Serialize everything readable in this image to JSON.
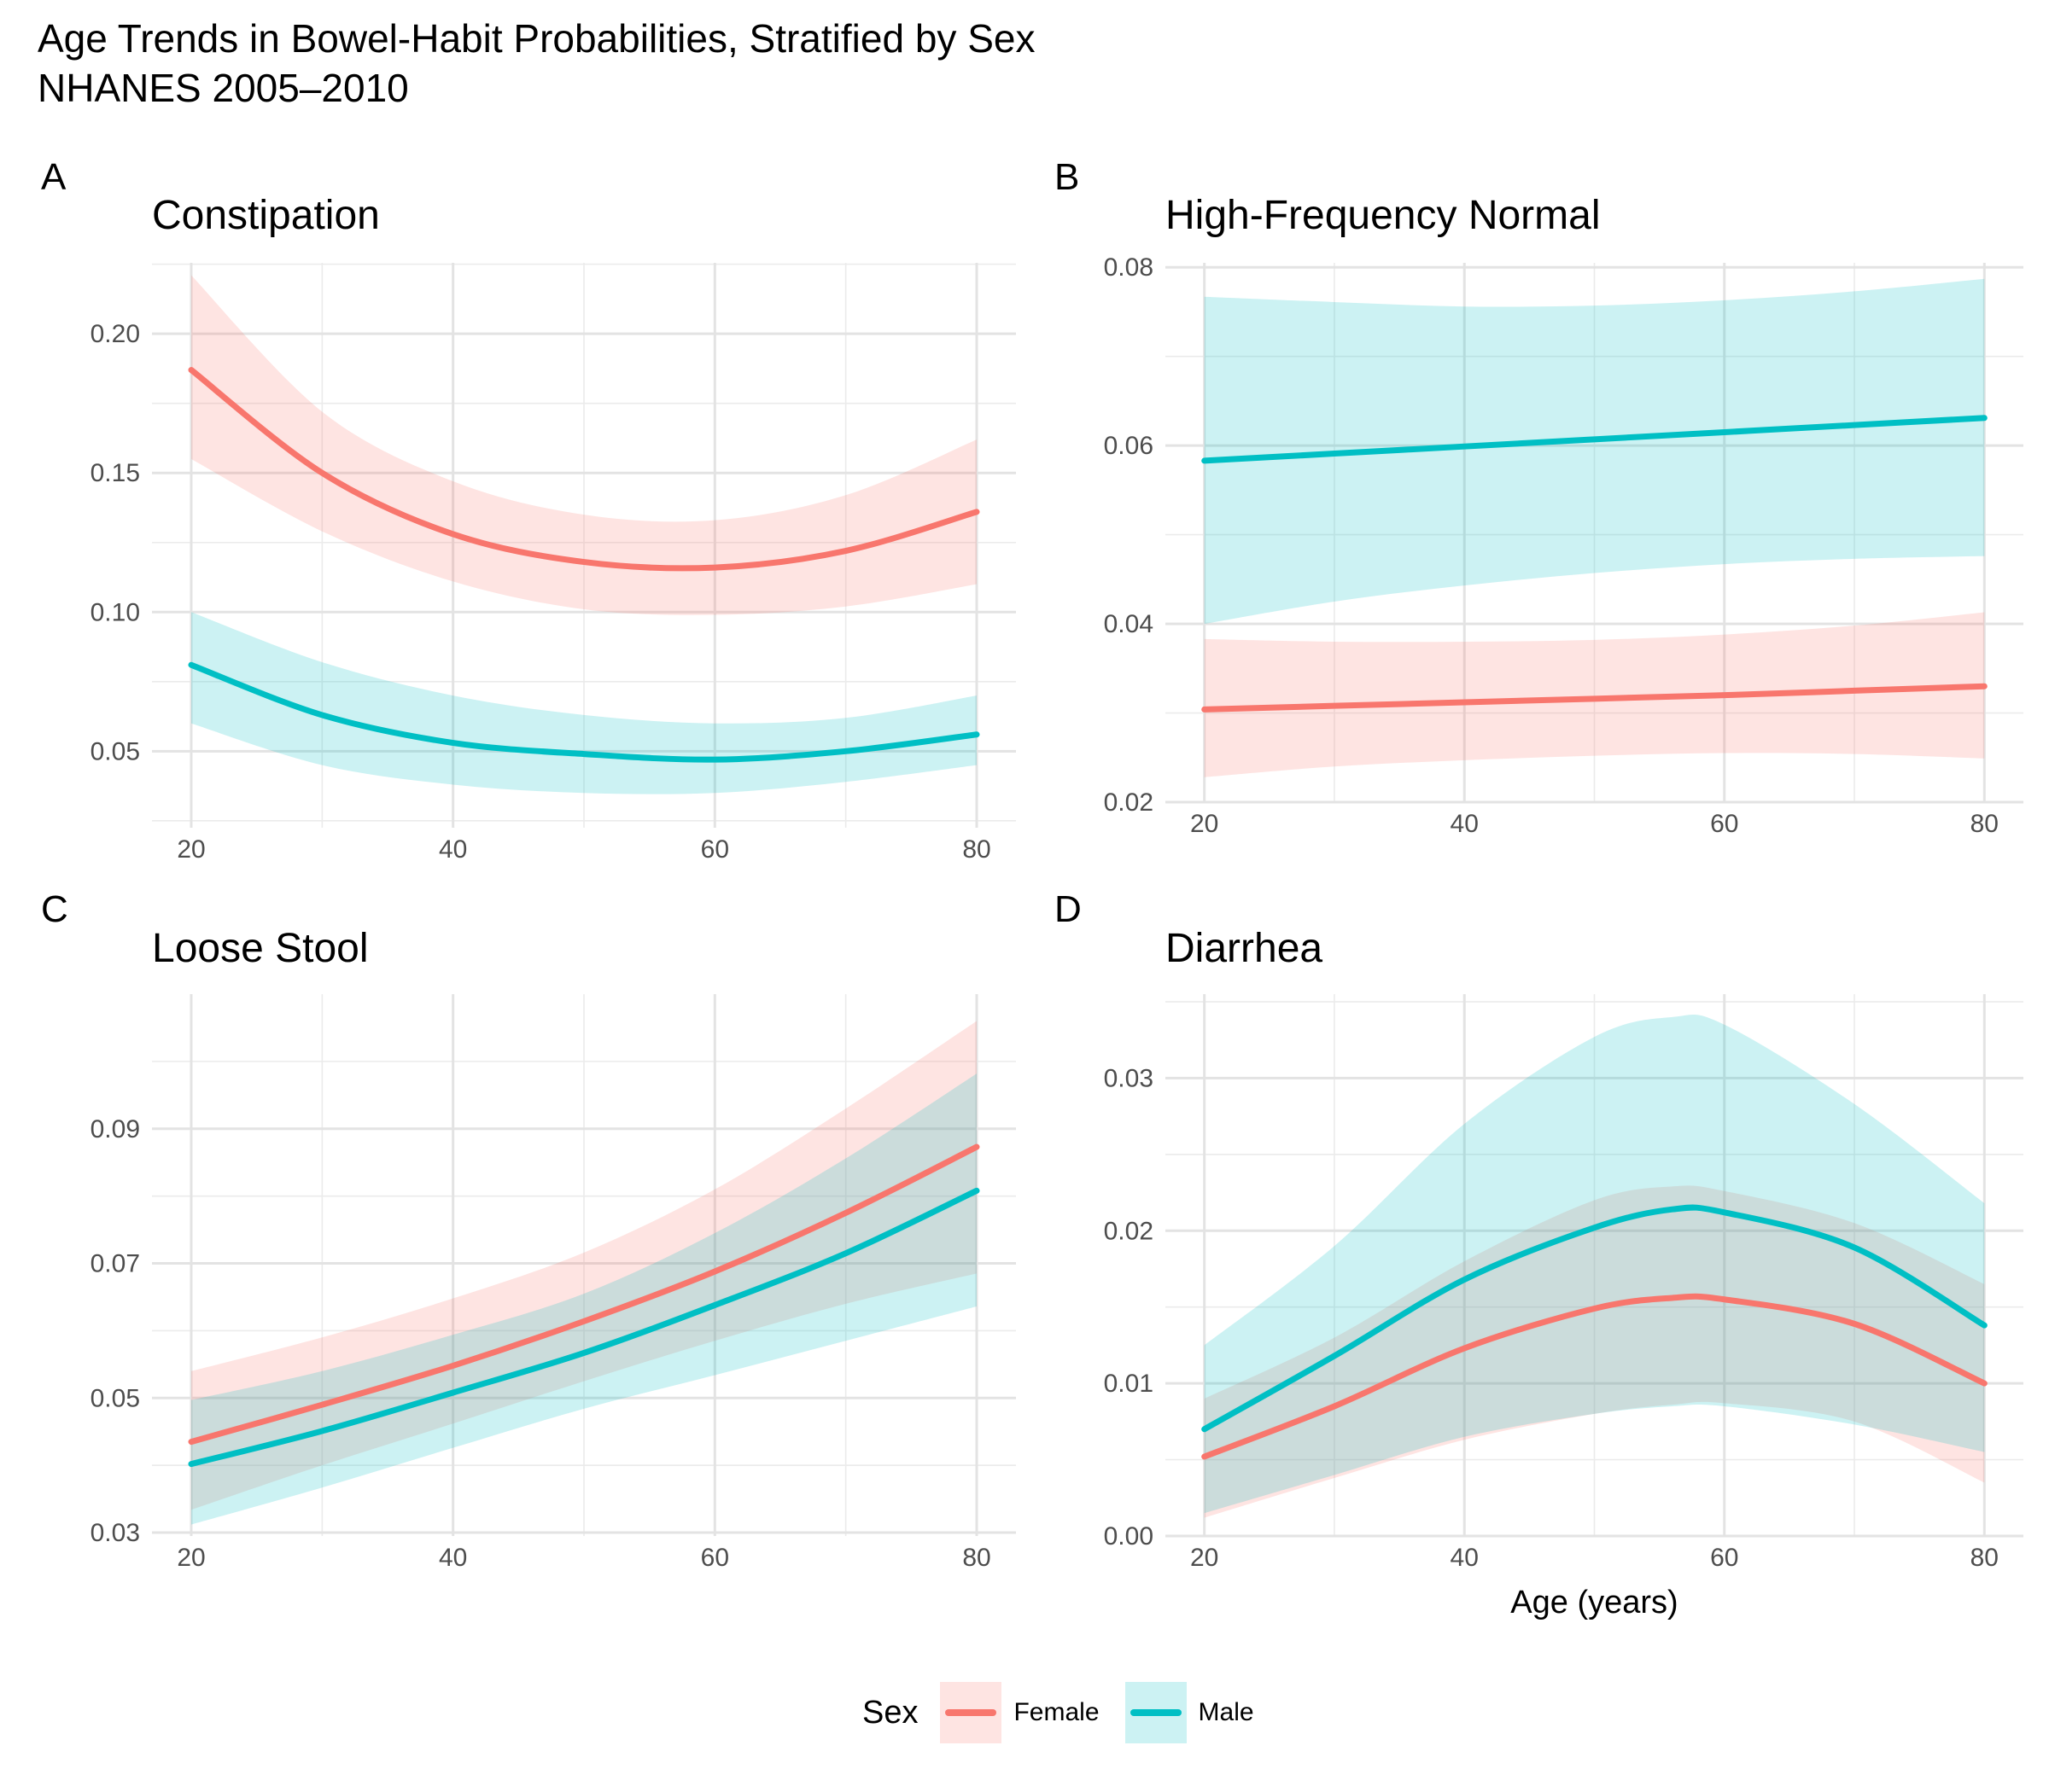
{
  "title_line1": "Age Trends in Bowel-Habit Probabilities, Stratified by Sex",
  "title_line2": "NHANES 2005–2010",
  "legend": {
    "title": "Sex",
    "items": [
      {
        "label": "Female",
        "color": "#F8766D"
      },
      {
        "label": "Male",
        "color": "#00BFC4"
      }
    ]
  },
  "chart_data": [
    {
      "type": "line",
      "tag": "A",
      "title": "Constipation",
      "xlabel": "",
      "ylabel": "",
      "xlim": [
        17,
        83
      ],
      "ylim": [
        0.0225,
        0.2255
      ],
      "x_ticks": [
        20,
        40,
        60,
        80
      ],
      "y_ticks": [
        0.05,
        0.1,
        0.15,
        0.2
      ],
      "y_tick_labels": [
        "0.05",
        "0.10",
        "0.15",
        "0.20"
      ],
      "x": [
        20,
        30,
        40,
        50,
        60,
        70,
        80
      ],
      "series": [
        {
          "name": "Female",
          "color": "#F8766D",
          "values": [
            0.187,
            0.15,
            0.128,
            0.118,
            0.116,
            0.122,
            0.136
          ],
          "lower": [
            0.155,
            0.129,
            0.111,
            0.101,
            0.099,
            0.102,
            0.11
          ],
          "upper": [
            0.221,
            0.172,
            0.147,
            0.135,
            0.133,
            0.142,
            0.162
          ]
        },
        {
          "name": "Male",
          "color": "#00BFC4",
          "values": [
            0.081,
            0.063,
            0.053,
            0.049,
            0.047,
            0.05,
            0.056
          ],
          "lower": [
            0.06,
            0.045,
            0.038,
            0.035,
            0.035,
            0.039,
            0.045
          ],
          "upper": [
            0.1,
            0.082,
            0.07,
            0.063,
            0.06,
            0.062,
            0.07
          ]
        }
      ]
    },
    {
      "type": "line",
      "tag": "B",
      "title": "High-Frequency Normal",
      "xlabel": "",
      "ylabel": "",
      "xlim": [
        17,
        83
      ],
      "ylim": [
        0.02,
        0.0805
      ],
      "x_ticks": [
        20,
        40,
        60,
        80
      ],
      "y_ticks": [
        0.02,
        0.04,
        0.06,
        0.08
      ],
      "y_tick_labels": [
        "0.02",
        "0.04",
        "0.06",
        "0.08"
      ],
      "x": [
        20,
        30,
        40,
        50,
        60,
        70,
        80
      ],
      "series": [
        {
          "name": "Female",
          "color": "#F8766D",
          "values": [
            0.0304,
            0.0308,
            0.0312,
            0.0316,
            0.032,
            0.0325,
            0.033
          ],
          "lower": [
            0.0228,
            0.024,
            0.0247,
            0.0252,
            0.0255,
            0.0254,
            0.0249
          ],
          "upper": [
            0.0383,
            0.038,
            0.038,
            0.0382,
            0.0388,
            0.0398,
            0.0413
          ]
        },
        {
          "name": "Male",
          "color": "#00BFC4",
          "values": [
            0.0583,
            0.0591,
            0.0599,
            0.0607,
            0.0615,
            0.0623,
            0.0631
          ],
          "lower": [
            0.04,
            0.0425,
            0.0443,
            0.0457,
            0.0467,
            0.0473,
            0.0476
          ],
          "upper": [
            0.0767,
            0.0761,
            0.0756,
            0.0757,
            0.0763,
            0.0773,
            0.0787
          ]
        }
      ]
    },
    {
      "type": "line",
      "tag": "C",
      "title": "Loose Stool",
      "xlabel": "",
      "ylabel": "",
      "xlim": [
        17,
        83
      ],
      "ylim": [
        0.0295,
        0.11
      ],
      "x_ticks": [
        20,
        40,
        60,
        80
      ],
      "y_ticks": [
        0.03,
        0.05,
        0.07,
        0.09
      ],
      "y_tick_labels": [
        "0.03",
        "0.05",
        "0.07",
        "0.09"
      ],
      "x": [
        20,
        30,
        40,
        50,
        60,
        70,
        80
      ],
      "series": [
        {
          "name": "Female",
          "color": "#F8766D",
          "values": [
            0.0435,
            0.049,
            0.0548,
            0.0614,
            0.0688,
            0.0775,
            0.0873
          ],
          "lower": [
            0.0334,
            0.04,
            0.0462,
            0.0525,
            0.0585,
            0.064,
            0.0685
          ],
          "upper": [
            0.054,
            0.059,
            0.0648,
            0.0716,
            0.081,
            0.093,
            0.106
          ]
        },
        {
          "name": "Male",
          "color": "#00BFC4",
          "values": [
            0.0402,
            0.0451,
            0.0508,
            0.0567,
            0.0638,
            0.0715,
            0.0808
          ],
          "lower": [
            0.0312,
            0.0367,
            0.0426,
            0.0484,
            0.0534,
            0.0585,
            0.0636
          ],
          "upper": [
            0.0497,
            0.054,
            0.0594,
            0.0655,
            0.0745,
            0.0856,
            0.0982
          ]
        }
      ]
    },
    {
      "type": "line",
      "tag": "D",
      "title": "Diarrhea",
      "xlabel": "Age (years)",
      "ylabel": "",
      "xlim": [
        17,
        83
      ],
      "ylim": [
        0.0,
        0.0355
      ],
      "x_ticks": [
        20,
        40,
        60,
        80
      ],
      "y_ticks": [
        0.0,
        0.01,
        0.02,
        0.03
      ],
      "y_tick_labels": [
        "0.00",
        "0.01",
        "0.02",
        "0.03"
      ],
      "x": [
        20,
        30,
        40,
        50,
        56,
        60,
        70,
        80
      ],
      "series": [
        {
          "name": "Female",
          "color": "#F8766D",
          "values": [
            0.0052,
            0.0085,
            0.0123,
            0.0149,
            0.0156,
            0.0155,
            0.0139,
            0.01
          ],
          "lower": [
            0.0012,
            0.0038,
            0.0063,
            0.008,
            0.0086,
            0.0087,
            0.0075,
            0.0035
          ],
          "upper": [
            0.009,
            0.013,
            0.018,
            0.022,
            0.0229,
            0.0226,
            0.0205,
            0.0165
          ]
        },
        {
          "name": "Male",
          "color": "#00BFC4",
          "values": [
            0.007,
            0.0118,
            0.0168,
            0.0202,
            0.0214,
            0.0212,
            0.0189,
            0.0138
          ],
          "lower": [
            0.0015,
            0.004,
            0.0065,
            0.008,
            0.0085,
            0.0085,
            0.0073,
            0.0055
          ],
          "upper": [
            0.0125,
            0.019,
            0.027,
            0.0327,
            0.034,
            0.0335,
            0.0283,
            0.0218
          ]
        }
      ]
    }
  ]
}
